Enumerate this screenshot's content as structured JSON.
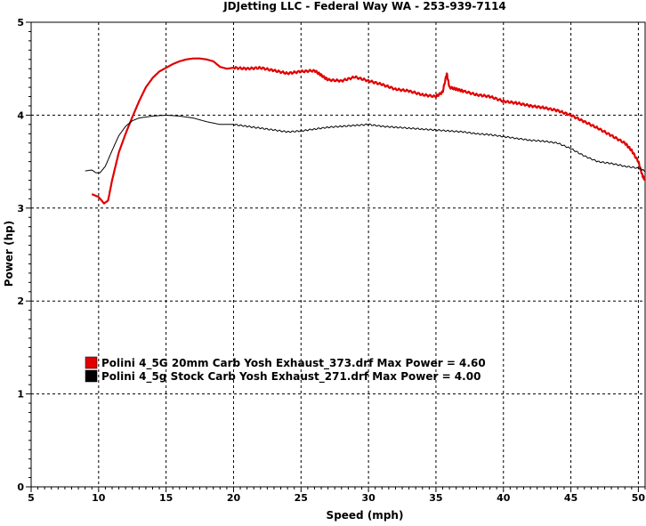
{
  "chart_data": {
    "type": "line",
    "title": "JDJetting LLC  - Federal Way WA - 253-939-7114",
    "xlabel": "Speed (mph)",
    "ylabel": "Power (hp)",
    "xlim": [
      5,
      50.5
    ],
    "ylim": [
      0,
      5
    ],
    "x_ticks": [
      5,
      10,
      15,
      20,
      25,
      30,
      35,
      40,
      45,
      50
    ],
    "y_ticks": [
      0,
      1,
      2,
      3,
      4,
      5
    ],
    "grid": true,
    "legend_position": "lower-left",
    "series": [
      {
        "name": "Polini 4_5G 20mm Carb Yosh Exhaust_373.drf Max Power = 4.60",
        "color": "#e00000",
        "points": [
          [
            9.5,
            3.15
          ],
          [
            10.0,
            3.12
          ],
          [
            10.4,
            3.05
          ],
          [
            10.7,
            3.08
          ],
          [
            11.0,
            3.3
          ],
          [
            11.5,
            3.6
          ],
          [
            12.0,
            3.8
          ],
          [
            12.5,
            3.98
          ],
          [
            13.0,
            4.15
          ],
          [
            13.5,
            4.3
          ],
          [
            14.0,
            4.4
          ],
          [
            14.5,
            4.47
          ],
          [
            15.0,
            4.51
          ],
          [
            15.5,
            4.55
          ],
          [
            16.0,
            4.58
          ],
          [
            16.5,
            4.6
          ],
          [
            17.0,
            4.61
          ],
          [
            17.5,
            4.61
          ],
          [
            18.0,
            4.6
          ],
          [
            18.5,
            4.58
          ],
          [
            19.0,
            4.52
          ],
          [
            19.5,
            4.5
          ],
          [
            20.0,
            4.51
          ],
          [
            21.0,
            4.5
          ],
          [
            22.0,
            4.51
          ],
          [
            23.0,
            4.48
          ],
          [
            24.0,
            4.45
          ],
          [
            25.0,
            4.47
          ],
          [
            26.0,
            4.48
          ],
          [
            26.5,
            4.43
          ],
          [
            27.0,
            4.38
          ],
          [
            28.0,
            4.37
          ],
          [
            29.0,
            4.41
          ],
          [
            30.0,
            4.37
          ],
          [
            31.0,
            4.33
          ],
          [
            32.0,
            4.28
          ],
          [
            33.0,
            4.26
          ],
          [
            34.0,
            4.22
          ],
          [
            35.0,
            4.2
          ],
          [
            35.5,
            4.25
          ],
          [
            35.8,
            4.45
          ],
          [
            36.0,
            4.3
          ],
          [
            36.5,
            4.28
          ],
          [
            37.0,
            4.26
          ],
          [
            38.0,
            4.22
          ],
          [
            39.0,
            4.2
          ],
          [
            40.0,
            4.15
          ],
          [
            41.0,
            4.13
          ],
          [
            42.0,
            4.1
          ],
          [
            43.0,
            4.08
          ],
          [
            44.0,
            4.05
          ],
          [
            45.0,
            4.0
          ],
          [
            46.0,
            3.93
          ],
          [
            47.0,
            3.86
          ],
          [
            48.0,
            3.78
          ],
          [
            49.0,
            3.7
          ],
          [
            49.5,
            3.62
          ],
          [
            50.0,
            3.5
          ],
          [
            50.3,
            3.35
          ],
          [
            50.5,
            3.3
          ]
        ]
      },
      {
        "name": "Polini 4_5g Stock Carb Yosh Exhaust_271.drf Max Power = 4.00",
        "color": "#000000",
        "points": [
          [
            9.0,
            3.4
          ],
          [
            9.5,
            3.41
          ],
          [
            9.8,
            3.38
          ],
          [
            10.1,
            3.38
          ],
          [
            10.5,
            3.45
          ],
          [
            11.0,
            3.62
          ],
          [
            11.5,
            3.78
          ],
          [
            12.0,
            3.88
          ],
          [
            12.5,
            3.94
          ],
          [
            13.0,
            3.97
          ],
          [
            14.0,
            3.99
          ],
          [
            15.0,
            4.0
          ],
          [
            16.0,
            3.99
          ],
          [
            17.0,
            3.97
          ],
          [
            18.0,
            3.93
          ],
          [
            19.0,
            3.9
          ],
          [
            20.0,
            3.9
          ],
          [
            21.0,
            3.88
          ],
          [
            22.0,
            3.86
          ],
          [
            23.0,
            3.84
          ],
          [
            24.0,
            3.82
          ],
          [
            25.0,
            3.83
          ],
          [
            26.0,
            3.85
          ],
          [
            27.0,
            3.87
          ],
          [
            28.0,
            3.88
          ],
          [
            29.0,
            3.89
          ],
          [
            30.0,
            3.9
          ],
          [
            31.0,
            3.88
          ],
          [
            32.0,
            3.87
          ],
          [
            33.0,
            3.86
          ],
          [
            34.0,
            3.85
          ],
          [
            35.0,
            3.84
          ],
          [
            36.0,
            3.83
          ],
          [
            37.0,
            3.82
          ],
          [
            38.0,
            3.8
          ],
          [
            39.0,
            3.79
          ],
          [
            40.0,
            3.77
          ],
          [
            41.0,
            3.75
          ],
          [
            42.0,
            3.73
          ],
          [
            43.0,
            3.72
          ],
          [
            44.0,
            3.7
          ],
          [
            45.0,
            3.64
          ],
          [
            46.0,
            3.56
          ],
          [
            47.0,
            3.5
          ],
          [
            48.0,
            3.48
          ],
          [
            49.0,
            3.45
          ],
          [
            50.0,
            3.43
          ],
          [
            50.5,
            3.4
          ]
        ]
      }
    ]
  }
}
